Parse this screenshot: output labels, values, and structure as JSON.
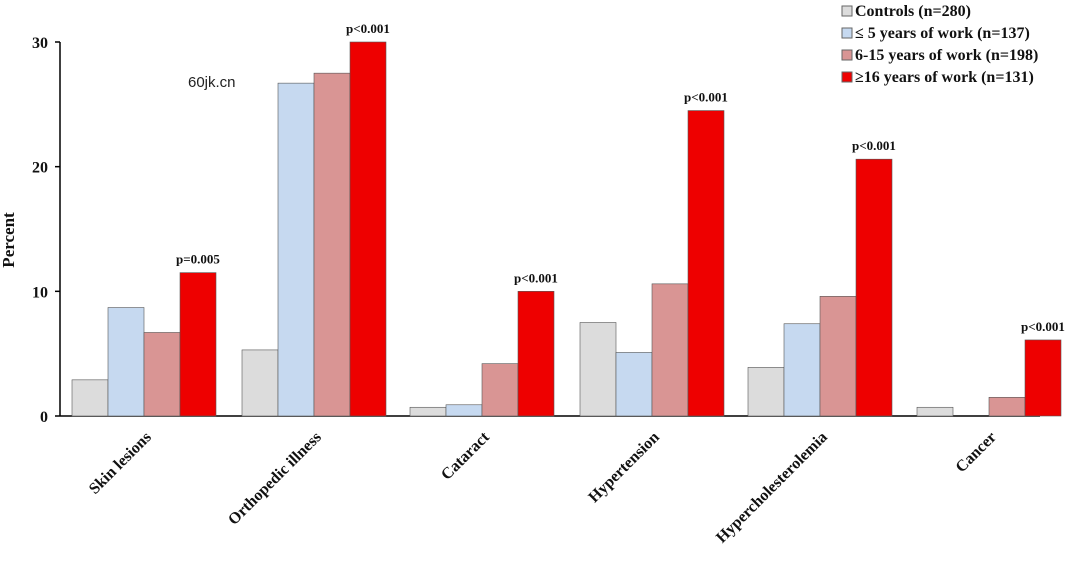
{
  "chart_data": {
    "type": "bar",
    "title": "",
    "xlabel": "",
    "ylabel": "Percent",
    "ylim": [
      0,
      30
    ],
    "yticks": [
      "0",
      "10",
      "20",
      "30"
    ],
    "categories": [
      "Skin lesions",
      "Orthopedic illness",
      "Cataract",
      "Hypertension",
      "Hypercholesterolemia",
      "Cancer"
    ],
    "series": [
      {
        "name": "Controls (n=280)",
        "color": "#dcdcdc",
        "values": [
          2.9,
          5.3,
          0.7,
          7.5,
          3.9,
          0.7
        ]
      },
      {
        "name": "≤ 5 years of work (n=137)",
        "color": "#c6d9f0",
        "values": [
          8.7,
          26.7,
          0.9,
          5.1,
          7.4,
          0
        ]
      },
      {
        "name": "6-15 years of work (n=198)",
        "color": "#d99594",
        "values": [
          6.7,
          27.5,
          4.2,
          10.6,
          9.6,
          1.5
        ]
      },
      {
        "name": "≥16 years of work (n=131)",
        "color": "#ee0000",
        "values": [
          11.5,
          30.0,
          10.0,
          24.5,
          20.6,
          6.1
        ]
      }
    ],
    "annotations": [
      "p=0.005",
      "p<0.001",
      "p<0.001",
      "p<0.001",
      "p<0.001",
      "p<0.001"
    ],
    "legend_position": "top-right",
    "grid": false
  },
  "watermark": "60jk.cn"
}
